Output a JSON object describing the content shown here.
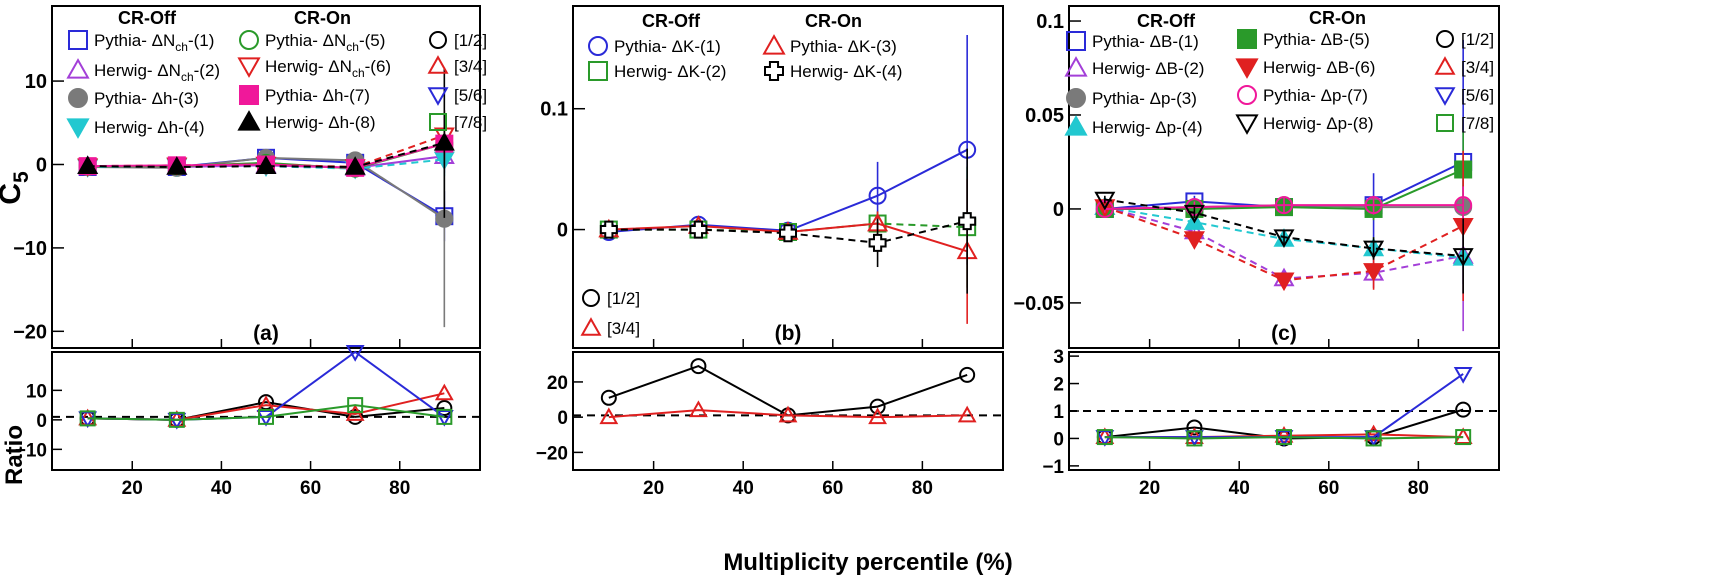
{
  "figure": {
    "xlabel": "Multiplicity percentile (%)",
    "ylabel_main": "C",
    "ylabel_sub": "5",
    "ylabel_ratio": "Ratio",
    "header_off": "CR-Off",
    "header_on": "CR-On"
  },
  "chart_data": [
    {
      "id": "a",
      "type": "line",
      "panel_label": "(a)",
      "x": [
        10,
        30,
        50,
        70,
        90
      ],
      "xlim": [
        2,
        98
      ],
      "xticks": [
        20,
        40,
        60,
        80
      ],
      "ylim": [
        -22,
        19
      ],
      "yticks": [
        -20,
        -10,
        0,
        10
      ],
      "yticklabels": [
        "−20",
        "−10",
        "0",
        "10"
      ],
      "series": [
        {
          "key": "s1",
          "legend_prefix": "Pythia-",
          "legend_core": "ΔN",
          "legend_sub": "ch",
          "legend_suffix": "-(1)",
          "color": "#2a2ad8",
          "marker": "square-open",
          "dash": false,
          "values": [
            -0.3,
            -0.3,
            0.8,
            0.2,
            -6.2
          ],
          "err": [
            0.3,
            0.3,
            0.8,
            0.8,
            3.0
          ]
        },
        {
          "key": "s2",
          "legend_prefix": "Herwig-",
          "legend_core": "ΔN",
          "legend_sub": "ch",
          "legend_suffix": "-(2)",
          "color": "#a33fd8",
          "marker": "triangle-up-open",
          "dash": false,
          "values": [
            -0.2,
            -0.3,
            -0.1,
            -0.4,
            1.0
          ],
          "err": [
            0.3,
            0.3,
            0.5,
            0.8,
            2.0
          ]
        },
        {
          "key": "s3",
          "legend_prefix": "Pythia-",
          "legend_core": "Δh",
          "legend_sub": "",
          "legend_suffix": "-(3)",
          "color": "#7a7a7a",
          "marker": "circle-filled",
          "dash": false,
          "values": [
            -0.3,
            -0.4,
            0.8,
            0.5,
            -6.5
          ],
          "err": [
            0.3,
            0.3,
            0.8,
            0.8,
            13.0
          ]
        },
        {
          "key": "s4",
          "legend_prefix": "Herwig-",
          "legend_core": "Δh",
          "legend_sub": "",
          "legend_suffix": "-(4)",
          "color": "#22c8d0",
          "marker": "triangle-down-filled",
          "dash": true,
          "values": [
            -0.3,
            -0.2,
            -0.2,
            -0.5,
            0.6
          ],
          "err": [
            0.3,
            0.3,
            0.5,
            0.8,
            2.0
          ]
        },
        {
          "key": "s5",
          "legend_prefix": "Pythia-",
          "legend_core": "ΔN",
          "legend_sub": "ch",
          "legend_suffix": "-(5)",
          "color": "#2a9a2a",
          "marker": "circle-open",
          "dash": false,
          "values": [
            -0.2,
            -0.2,
            0.2,
            -0.5,
            2.5
          ],
          "err": [
            0.3,
            0.3,
            0.5,
            0.8,
            3.0
          ]
        },
        {
          "key": "s6",
          "legend_prefix": "Herwig-",
          "legend_core": "ΔN",
          "legend_sub": "ch",
          "legend_suffix": "-(6)",
          "color": "#e02020",
          "marker": "triangle-down-open",
          "dash": true,
          "values": [
            -0.2,
            -0.1,
            0.0,
            -0.3,
            3.5
          ],
          "err": [
            0.3,
            0.3,
            0.5,
            0.8,
            3.0
          ]
        },
        {
          "key": "s7",
          "legend_prefix": "Pythia-",
          "legend_core": "Δh",
          "legend_sub": "",
          "legend_suffix": "-(7)",
          "color": "#f0189a",
          "marker": "square-filled",
          "dash": false,
          "values": [
            -0.2,
            -0.1,
            0.0,
            -0.4,
            2.5
          ],
          "err": [
            0.3,
            0.3,
            0.5,
            0.8,
            3.0
          ]
        },
        {
          "key": "s8",
          "legend_prefix": "Herwig-",
          "legend_core": "Δh",
          "legend_sub": "",
          "legend_suffix": "-(8)",
          "color": "#000000",
          "marker": "triangle-up-filled",
          "dash": true,
          "values": [
            -0.2,
            -0.3,
            -0.2,
            -0.3,
            2.6
          ],
          "err": [
            0.3,
            0.3,
            0.5,
            0.8,
            9.0
          ]
        }
      ],
      "ratio": {
        "ylim": [
          -17,
          23
        ],
        "yticks": [
          -10,
          0,
          10
        ],
        "yticklabels": [
          "−10",
          "0",
          "10"
        ],
        "ref": 1,
        "series": [
          {
            "key": "r12",
            "legend": "[1/2]",
            "color": "#000000",
            "marker": "circle-open",
            "values": [
              0.5,
              0,
              6,
              1,
              4
            ]
          },
          {
            "key": "r34",
            "legend": "[3/4]",
            "color": "#e02020",
            "marker": "triangle-up-open",
            "values": [
              0.5,
              0,
              5,
              2,
              9
            ]
          },
          {
            "key": "r56",
            "legend": "[5/6]",
            "color": "#2a2ad8",
            "marker": "triangle-down-open",
            "values": [
              0.5,
              0,
              1,
              23,
              1
            ]
          },
          {
            "key": "r78",
            "legend": "[7/8]",
            "color": "#2a9a2a",
            "marker": "square-open",
            "values": [
              0.5,
              0,
              1,
              5,
              1
            ]
          }
        ]
      }
    },
    {
      "id": "b",
      "type": "line",
      "panel_label": "(b)",
      "x": [
        10,
        30,
        50,
        70,
        90
      ],
      "xlim": [
        2,
        98
      ],
      "xticks": [
        20,
        40,
        60,
        80
      ],
      "ylim": [
        -0.098,
        0.185
      ],
      "yticks": [
        0,
        0.1
      ],
      "yticklabels": [
        "0",
        "0.1"
      ],
      "series": [
        {
          "key": "s1",
          "legend_prefix": "Pythia-",
          "legend_core": "ΔK",
          "legend_sub": "",
          "legend_suffix": "-(1)",
          "color": "#2a2ad8",
          "marker": "circle-open",
          "dash": false,
          "values": [
            -0.002,
            0.004,
            -0.001,
            0.028,
            0.066
          ],
          "err": [
            0.003,
            0.004,
            0.004,
            0.028,
            0.095
          ]
        },
        {
          "key": "s2",
          "legend_prefix": "Herwig-",
          "legend_core": "ΔK",
          "legend_sub": "",
          "legend_suffix": "-(2)",
          "color": "#2a9a2a",
          "marker": "square-open",
          "dash": true,
          "values": [
            0.0,
            0.0,
            -0.002,
            0.005,
            0.002
          ],
          "err": [
            0.003,
            0.004,
            0.004,
            0.01,
            0.05
          ]
        },
        {
          "key": "s3",
          "legend_prefix": "Pythia-",
          "legend_core": "ΔK",
          "legend_sub": "",
          "legend_suffix": "-(3)",
          "color": "#e02020",
          "marker": "triangle-up-open",
          "dash": false,
          "values": [
            0.0,
            0.003,
            -0.002,
            0.005,
            -0.018
          ],
          "err": [
            0.003,
            0.004,
            0.004,
            0.01,
            0.06
          ]
        },
        {
          "key": "s4",
          "legend_prefix": "Herwig-",
          "legend_core": "ΔK",
          "legend_sub": "",
          "legend_suffix": "-(4)",
          "color": "#000000",
          "marker": "cross-open",
          "dash": true,
          "values": [
            0.0,
            0.0,
            -0.003,
            -0.011,
            0.007
          ],
          "err": [
            0.003,
            0.004,
            0.004,
            0.02,
            0.06
          ]
        }
      ],
      "ratio": {
        "ylim": [
          -30,
          37
        ],
        "yticks": [
          -20,
          0,
          20
        ],
        "yticklabels": [
          "−20",
          "0",
          "20"
        ],
        "ref": 1,
        "series": [
          {
            "key": "r12",
            "legend": "[1/2]",
            "color": "#000000",
            "marker": "circle-open",
            "values": [
              11,
              29,
              1,
              6,
              24
            ]
          },
          {
            "key": "r34",
            "legend": "[3/4]",
            "color": "#e02020",
            "marker": "triangle-up-open",
            "values": [
              0,
              4,
              1,
              0,
              1
            ]
          }
        ]
      }
    },
    {
      "id": "c",
      "type": "line",
      "panel_label": "(c)",
      "x": [
        10,
        30,
        50,
        70,
        90
      ],
      "xlim": [
        2,
        98
      ],
      "xticks": [
        20,
        40,
        60,
        80
      ],
      "ylim": [
        -0.074,
        0.108
      ],
      "yticks": [
        -0.05,
        0,
        0.05,
        0.1
      ],
      "yticklabels": [
        "−0.05",
        "0",
        "0.05",
        "0.1"
      ],
      "series": [
        {
          "key": "s1",
          "legend_prefix": "Pythia-",
          "legend_core": "ΔB",
          "legend_sub": "",
          "legend_suffix": "-(1)",
          "color": "#2a2ad8",
          "marker": "square-open",
          "dash": false,
          "values": [
            0.0,
            0.004,
            0.001,
            0.002,
            0.025
          ],
          "err": [
            0.002,
            0.003,
            0.004,
            0.017,
            0.065
          ]
        },
        {
          "key": "s2",
          "legend_prefix": "Herwig-",
          "legend_core": "ΔB",
          "legend_sub": "",
          "legend_suffix": "-(2)",
          "color": "#a33fd8",
          "marker": "triangle-up-open",
          "dash": true,
          "values": [
            0.001,
            -0.012,
            -0.037,
            -0.034,
            -0.025
          ],
          "err": [
            0.002,
            0.003,
            0.004,
            0.008,
            0.04
          ]
        },
        {
          "key": "s3",
          "legend_prefix": "Pythia-",
          "legend_core": "Δp",
          "legend_sub": "",
          "legend_suffix": "-(3)",
          "color": "#7a7a7a",
          "marker": "circle-filled",
          "dash": false,
          "values": [
            0.0,
            0.001,
            0.002,
            0.001,
            0.001
          ],
          "err": [
            0.002,
            0.003,
            0.004,
            0.005,
            0.015
          ]
        },
        {
          "key": "s4",
          "legend_prefix": "Herwig-",
          "legend_core": "Δp",
          "legend_sub": "",
          "legend_suffix": "-(4)",
          "color": "#22c8d0",
          "marker": "triangle-up-filled",
          "dash": true,
          "values": [
            0.001,
            -0.007,
            -0.016,
            -0.021,
            -0.026
          ],
          "err": [
            0.002,
            0.003,
            0.004,
            0.006,
            0.02
          ]
        },
        {
          "key": "s5",
          "legend_prefix": "Pythia-",
          "legend_core": "ΔB",
          "legend_sub": "",
          "legend_suffix": "-(5)",
          "color": "#2a9a2a",
          "marker": "square-filled",
          "dash": false,
          "values": [
            0.0,
            0.0,
            0.001,
            0.0,
            0.021
          ],
          "err": [
            0.002,
            0.003,
            0.004,
            0.006,
            0.02
          ]
        },
        {
          "key": "s6",
          "legend_prefix": "Herwig-",
          "legend_core": "ΔB",
          "legend_sub": "",
          "legend_suffix": "-(6)",
          "color": "#e02020",
          "marker": "triangle-down-filled",
          "dash": true,
          "values": [
            0.001,
            -0.016,
            -0.038,
            -0.033,
            -0.009
          ],
          "err": [
            0.002,
            0.003,
            0.004,
            0.01,
            0.04
          ]
        },
        {
          "key": "s7",
          "legend_prefix": "Pythia-",
          "legend_core": "Δp",
          "legend_sub": "",
          "legend_suffix": "-(7)",
          "color": "#f0189a",
          "marker": "circle-open",
          "dash": false,
          "values": [
            0.0,
            0.001,
            0.002,
            0.002,
            0.002
          ],
          "err": [
            0.002,
            0.003,
            0.004,
            0.005,
            0.01
          ]
        },
        {
          "key": "s8",
          "legend_prefix": "Herwig-",
          "legend_core": "Δp",
          "legend_sub": "",
          "legend_suffix": "-(8)",
          "color": "#000000",
          "marker": "triangle-down-open",
          "dash": true,
          "values": [
            0.005,
            -0.002,
            -0.015,
            -0.021,
            -0.025
          ],
          "err": [
            0.002,
            0.003,
            0.004,
            0.006,
            0.02
          ]
        }
      ],
      "ratio": {
        "ylim": [
          -1.15,
          3.15
        ],
        "yticks": [
          -1,
          0,
          1,
          2,
          3
        ],
        "yticklabels": [
          "−1",
          "0",
          "1",
          "2",
          "3"
        ],
        "ref": 1,
        "series": [
          {
            "key": "r12",
            "legend": "[1/2]",
            "color": "#000000",
            "marker": "circle-open",
            "values": [
              0.05,
              0.4,
              0.0,
              0.05,
              1.05
            ]
          },
          {
            "key": "r34",
            "legend": "[3/4]",
            "color": "#e02020",
            "marker": "triangle-up-open",
            "values": [
              0.05,
              0.05,
              0.1,
              0.15,
              0.05
            ]
          },
          {
            "key": "r56",
            "legend": "[5/6]",
            "color": "#2a2ad8",
            "marker": "triangle-down-open",
            "values": [
              0.05,
              0.05,
              0.05,
              0.05,
              2.35
            ]
          },
          {
            "key": "r78",
            "legend": "[7/8]",
            "color": "#2a9a2a",
            "marker": "square-open",
            "values": [
              0.05,
              0.0,
              0.05,
              0.0,
              0.05
            ]
          }
        ]
      }
    }
  ]
}
